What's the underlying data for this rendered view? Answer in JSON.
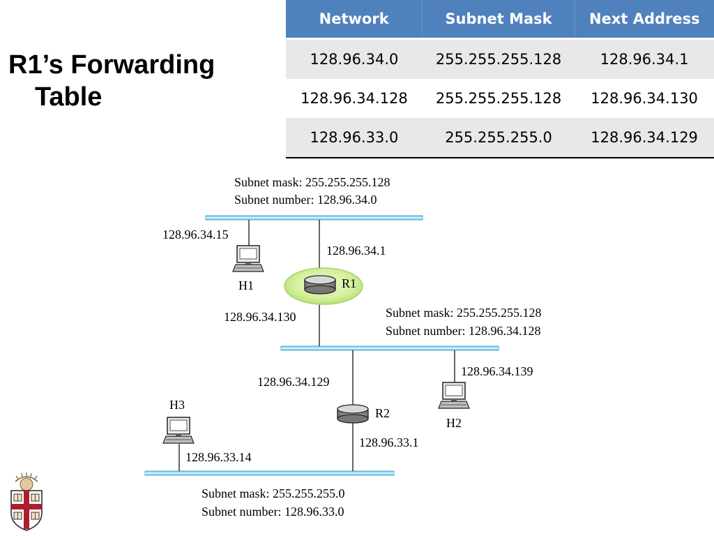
{
  "title": {
    "line1": "R1’s Forwarding",
    "line2": "Table"
  },
  "table": {
    "headers": [
      "Network",
      "Subnet Mask",
      "Next Address"
    ],
    "rows": [
      [
        "128.96.34.0",
        "255.255.255.128",
        "128.96.34.1"
      ],
      [
        "128.96.34.128",
        "255.255.255.128",
        "128.96.34.130"
      ],
      [
        "128.96.33.0",
        "255.255.255.0",
        "128.96.34.129"
      ]
    ]
  },
  "diagram": {
    "net_top": {
      "mask": "Subnet mask: 255.255.255.128",
      "number": "Subnet number: 128.96.34.0"
    },
    "net_mid": {
      "mask": "Subnet mask: 255.255.255.128",
      "number": "Subnet number: 128.96.34.128"
    },
    "net_bottom": {
      "mask": "Subnet mask: 255.255.255.0",
      "number": "Subnet number: 128.96.33.0"
    },
    "h1": {
      "name": "H1",
      "ip": "128.96.34.15"
    },
    "h2": {
      "name": "H2",
      "ip": "128.96.34.139"
    },
    "h3": {
      "name": "H3",
      "ip": "128.96.33.14"
    },
    "r1": {
      "name": "R1",
      "ip_top": "128.96.34.1",
      "ip_mid": "128.96.34.130"
    },
    "r2": {
      "name": "R2",
      "ip_mid": "128.96.34.129",
      "ip_bottom": "128.96.33.1"
    }
  },
  "colors": {
    "header_bg": "#4f81bd",
    "row_shade": "#e8e8e8",
    "ethernet": "#8fd3f0",
    "r1_highlight": "#d9f2a6",
    "logo_red": "#b01c2e"
  },
  "icons": [
    "computer-icon",
    "router-icon",
    "university-shield-logo"
  ]
}
